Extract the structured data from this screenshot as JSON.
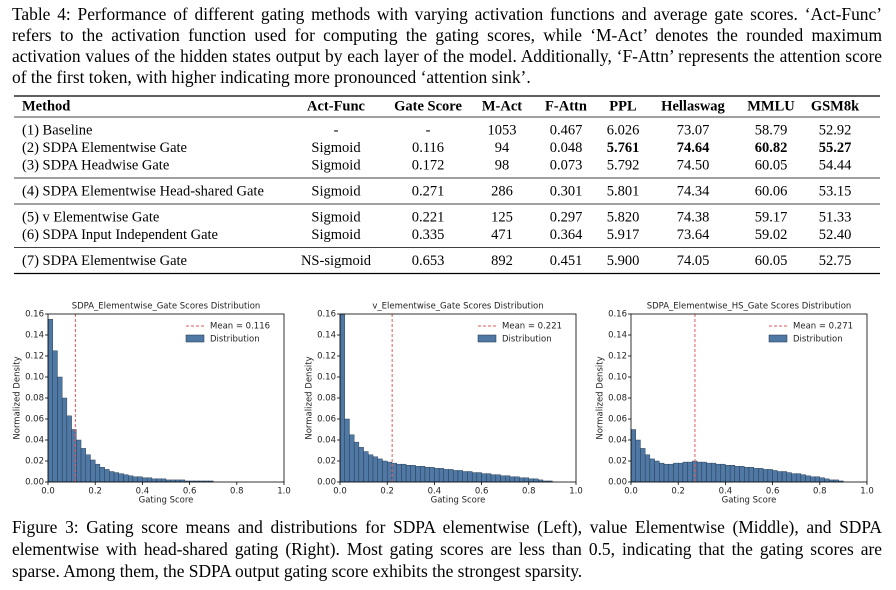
{
  "table_caption": {
    "label": "Table 4:",
    "text": "Performance of different gating methods with varying activation functions and average gate scores. ‘Act-Func’ refers to the activation function used for computing the gating scores, while ‘M-Act’ denotes the rounded maximum activation values of the hidden states output by each layer of the model. Additionally, ‘F-Attn’ represents the attention score of the first token, with higher indicating more pronounced ‘attention sink’."
  },
  "table": {
    "header": [
      "Method",
      "Act-Func",
      "Gate Score",
      "M-Act",
      "F-Attn",
      "PPL",
      "Hellaswag",
      "MMLU",
      "GSM8k"
    ],
    "groups": [
      [
        [
          "(1) Baseline",
          "-",
          "-",
          "1053",
          "0.467",
          "6.026",
          "73.07",
          "58.79",
          "52.92"
        ],
        [
          "(2) SDPA Elementwise Gate",
          "Sigmoid",
          "0.116",
          "94",
          "0.048",
          "5.761",
          "74.64",
          "60.82",
          "55.27"
        ],
        [
          "(3) SDPA Headwise Gate",
          "Sigmoid",
          "0.172",
          "98",
          "0.073",
          "5.792",
          "74.50",
          "60.05",
          "54.44"
        ]
      ],
      [
        [
          "(4) SDPA Elementwise Head-shared Gate",
          "Sigmoid",
          "0.271",
          "286",
          "0.301",
          "5.801",
          "74.34",
          "60.06",
          "53.15"
        ]
      ],
      [
        [
          "(5) v Elementwise Gate",
          "Sigmoid",
          "0.221",
          "125",
          "0.297",
          "5.820",
          "74.38",
          "59.17",
          "51.33"
        ],
        [
          "(6) SDPA Input Independent Gate",
          "Sigmoid",
          "0.335",
          "471",
          "0.364",
          "5.917",
          "73.64",
          "59.02",
          "52.40"
        ]
      ],
      [
        [
          "(7) SDPA Elementwise Gate",
          "NS-sigmoid",
          "0.653",
          "892",
          "0.451",
          "5.900",
          "74.05",
          "60.05",
          "52.75"
        ]
      ]
    ],
    "bold_cells": [
      "0.1.5",
      "0.1.6",
      "0.1.7",
      "0.1.8"
    ]
  },
  "chart_data": [
    {
      "type": "histogram",
      "title": "SDPA_Elementwise_Gate Scores Distribution",
      "xlabel": "Gating Score",
      "ylabel": "Normalized Density",
      "bins": [
        0,
        0.02,
        0.04,
        0.06,
        0.08,
        0.1,
        0.12,
        0.14,
        0.16,
        0.18,
        0.2,
        0.22,
        0.24,
        0.26,
        0.28,
        0.3,
        0.32,
        0.34,
        0.36,
        0.38,
        0.4,
        0.42,
        0.44,
        0.46,
        0.48,
        0.5,
        0.52,
        0.54,
        0.56,
        0.58,
        0.6,
        0.62,
        0.64,
        0.66,
        0.68,
        0.7,
        0.72,
        0.74,
        0.76,
        0.78,
        0.8,
        0.82,
        0.84,
        0.86,
        0.88,
        0.9
      ],
      "series": [
        {
          "name": "Distribution",
          "color": "#4f79a4",
          "values": [
            0.155,
            0.125,
            0.1,
            0.08,
            0.063,
            0.05,
            0.04,
            0.032,
            0.026,
            0.021,
            0.017,
            0.014,
            0.012,
            0.01,
            0.009,
            0.008,
            0.007,
            0.006,
            0.005,
            0.005,
            0.004,
            0.004,
            0.003,
            0.003,
            0.003,
            0.002,
            0.002,
            0.002,
            0.002,
            0.001,
            0.001,
            0.001,
            0.001,
            0.001,
            0.001,
            0,
            0,
            0,
            0,
            0,
            0,
            0,
            0,
            0,
            0
          ]
        }
      ],
      "mean": 0.116,
      "mean_label": "Mean = 0.116",
      "mean_color": "#e05a5a",
      "xlim": [
        0,
        1
      ],
      "ylim": [
        0,
        0.16
      ],
      "xticks": [
        {
          "value": 0,
          "label": "0.0"
        },
        {
          "value": 0.2,
          "label": "0.2"
        },
        {
          "value": 0.4,
          "label": "0.4"
        },
        {
          "value": 0.6,
          "label": "0.6"
        },
        {
          "value": 0.8,
          "label": "0.8"
        },
        {
          "value": 1,
          "label": "1.0"
        }
      ],
      "yticks": [
        {
          "value": 0,
          "label": "0.00"
        },
        {
          "value": 0.02,
          "label": "0.02"
        },
        {
          "value": 0.04,
          "label": "0.04"
        },
        {
          "value": 0.06,
          "label": "0.06"
        },
        {
          "value": 0.08,
          "label": "0.08"
        },
        {
          "value": 0.1,
          "label": "0.10"
        },
        {
          "value": 0.12,
          "label": "0.12"
        },
        {
          "value": 0.14,
          "label": "0.14"
        },
        {
          "value": 0.16,
          "label": "0.16"
        }
      ]
    },
    {
      "type": "histogram",
      "title": "v_Elementwise_Gate Scores Distribution",
      "xlabel": "Gating Score",
      "ylabel": "Normalized Density",
      "bins": [
        0,
        0.02,
        0.04,
        0.06,
        0.08,
        0.1,
        0.12,
        0.14,
        0.16,
        0.18,
        0.2,
        0.22,
        0.24,
        0.26,
        0.28,
        0.3,
        0.32,
        0.34,
        0.36,
        0.38,
        0.4,
        0.42,
        0.44,
        0.46,
        0.48,
        0.5,
        0.52,
        0.54,
        0.56,
        0.58,
        0.6,
        0.62,
        0.64,
        0.66,
        0.68,
        0.7,
        0.72,
        0.74,
        0.76,
        0.78,
        0.8,
        0.82,
        0.84,
        0.86,
        0.88,
        0.9
      ],
      "series": [
        {
          "name": "Distribution",
          "color": "#4f79a4",
          "values": [
            0.16,
            0.06,
            0.045,
            0.038,
            0.033,
            0.029,
            0.026,
            0.024,
            0.022,
            0.02,
            0.019,
            0.018,
            0.017,
            0.017,
            0.016,
            0.016,
            0.015,
            0.015,
            0.014,
            0.014,
            0.013,
            0.013,
            0.012,
            0.012,
            0.011,
            0.011,
            0.01,
            0.01,
            0.009,
            0.009,
            0.008,
            0.008,
            0.007,
            0.007,
            0.006,
            0.006,
            0.005,
            0.005,
            0.004,
            0.004,
            0.003,
            0.003,
            0.002,
            0.001,
            0.001
          ]
        }
      ],
      "mean": 0.221,
      "mean_label": "Mean = 0.221",
      "mean_color": "#e05a5a",
      "xlim": [
        0,
        1
      ],
      "ylim": [
        0,
        0.16
      ],
      "xticks": [
        {
          "value": 0,
          "label": "0.0"
        },
        {
          "value": 0.2,
          "label": "0.2"
        },
        {
          "value": 0.4,
          "label": "0.4"
        },
        {
          "value": 0.6,
          "label": "0.6"
        },
        {
          "value": 0.8,
          "label": "0.8"
        },
        {
          "value": 1,
          "label": "1.0"
        }
      ],
      "yticks": [
        {
          "value": 0,
          "label": "0.00"
        },
        {
          "value": 0.02,
          "label": "0.02"
        },
        {
          "value": 0.04,
          "label": "0.04"
        },
        {
          "value": 0.06,
          "label": "0.06"
        },
        {
          "value": 0.08,
          "label": "0.08"
        },
        {
          "value": 0.1,
          "label": "0.10"
        },
        {
          "value": 0.12,
          "label": "0.12"
        },
        {
          "value": 0.14,
          "label": "0.14"
        },
        {
          "value": 0.16,
          "label": "0.16"
        }
      ]
    },
    {
      "type": "histogram",
      "title": "SDPA_Elementwise_HS_Gate Scores Distribution",
      "xlabel": "Gating Score",
      "ylabel": "Normalized Density",
      "bins": [
        0,
        0.02,
        0.04,
        0.06,
        0.08,
        0.1,
        0.12,
        0.14,
        0.16,
        0.18,
        0.2,
        0.22,
        0.24,
        0.26,
        0.28,
        0.3,
        0.32,
        0.34,
        0.36,
        0.38,
        0.4,
        0.42,
        0.44,
        0.46,
        0.48,
        0.5,
        0.52,
        0.54,
        0.56,
        0.58,
        0.6,
        0.62,
        0.64,
        0.66,
        0.68,
        0.7,
        0.72,
        0.74,
        0.76,
        0.78,
        0.8,
        0.82,
        0.84,
        0.86,
        0.88,
        0.9
      ],
      "series": [
        {
          "name": "Distribution",
          "color": "#4f79a4",
          "values": [
            0.05,
            0.04,
            0.032,
            0.026,
            0.022,
            0.02,
            0.018,
            0.017,
            0.017,
            0.018,
            0.018,
            0.019,
            0.019,
            0.02,
            0.019,
            0.019,
            0.018,
            0.018,
            0.017,
            0.017,
            0.016,
            0.016,
            0.015,
            0.015,
            0.014,
            0.014,
            0.013,
            0.013,
            0.012,
            0.012,
            0.011,
            0.01,
            0.01,
            0.009,
            0.008,
            0.008,
            0.007,
            0.006,
            0.005,
            0.005,
            0.004,
            0.003,
            0.002,
            0.002,
            0.001
          ]
        }
      ],
      "mean": 0.271,
      "mean_label": "Mean = 0.271",
      "mean_color": "#e05a5a",
      "xlim": [
        0,
        1
      ],
      "ylim": [
        0,
        0.16
      ],
      "xticks": [
        {
          "value": 0,
          "label": "0.0"
        },
        {
          "value": 0.2,
          "label": "0.2"
        },
        {
          "value": 0.4,
          "label": "0.4"
        },
        {
          "value": 0.6,
          "label": "0.6"
        },
        {
          "value": 0.8,
          "label": "0.8"
        },
        {
          "value": 1,
          "label": "1.0"
        }
      ],
      "yticks": [
        {
          "value": 0,
          "label": "0.00"
        },
        {
          "value": 0.02,
          "label": "0.02"
        },
        {
          "value": 0.04,
          "label": "0.04"
        },
        {
          "value": 0.06,
          "label": "0.06"
        },
        {
          "value": 0.08,
          "label": "0.08"
        },
        {
          "value": 0.1,
          "label": "0.10"
        },
        {
          "value": 0.12,
          "label": "0.12"
        },
        {
          "value": 0.14,
          "label": "0.14"
        },
        {
          "value": 0.16,
          "label": "0.16"
        }
      ]
    }
  ],
  "figure_caption": {
    "label": "Figure 3:",
    "text": "Gating score means and distributions for SDPA elementwise (Left), value Elementwise (Middle), and SDPA elementwise with head-shared gating (Right). Most gating scores are less than 0.5, indicating that the gating scores are sparse. Among them, the SDPA output gating score exhibits the strongest sparsity."
  }
}
